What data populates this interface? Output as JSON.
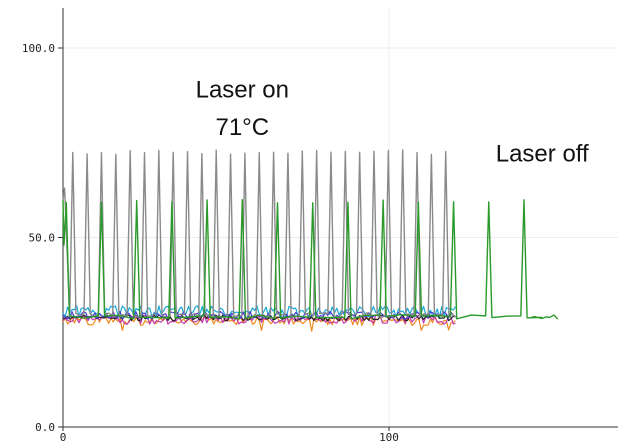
{
  "chart_data": {
    "type": "line",
    "title": "",
    "xlabel": "",
    "ylabel": "",
    "xlim": [
      0,
      170
    ],
    "ylim": [
      0,
      100
    ],
    "grid": true,
    "x_ticks": [
      0,
      100
    ],
    "x_tick_labels": [
      "0",
      "100"
    ],
    "y_ticks": [
      0,
      50,
      100
    ],
    "y_tick_labels": [
      "0.0",
      "50.0",
      "100.0"
    ],
    "annotations": [
      {
        "text": "Laser on",
        "x": 55,
        "y": 87
      },
      {
        "text": "71°C",
        "x": 55,
        "y": 77
      },
      {
        "text": "Laser off",
        "x": 147,
        "y": 70
      }
    ],
    "series": [
      {
        "color": "#8a8a8a",
        "pattern": {
          "start": 0,
          "end": 121,
          "period": 4.4,
          "first_peak": 3,
          "peak": 72.5,
          "baseline": 29.5,
          "peak_width": 0.6,
          "initial": [
            [
              0,
              60
            ],
            [
              0.5,
              63
            ]
          ]
        }
      },
      {
        "color": "#2a9a2a",
        "pattern": {
          "start": 0,
          "end": 152,
          "period": 10.8,
          "first_peak": 1,
          "peak": 59.5,
          "baseline": 29.0,
          "peak_width": 0.6,
          "initial": [
            [
              0,
              60
            ],
            [
              0.3,
              48
            ]
          ]
        }
      },
      {
        "color": "#19a8d9",
        "noise": {
          "start": 0,
          "end": 121,
          "center": 30.5,
          "amplitude": 1.5,
          "dips": []
        }
      },
      {
        "color": "#f08a1e",
        "noise": {
          "start": 0,
          "end": 121,
          "center": 28.0,
          "amplitude": 1.2,
          "dips": [
            [
              18,
              25.5
            ],
            [
              61,
              25.5
            ],
            [
              76,
              25.3
            ],
            [
              110,
              25.5
            ],
            [
              118,
              25.6
            ]
          ]
        }
      },
      {
        "color": "#c23ab0",
        "noise": {
          "start": 0,
          "end": 121,
          "center": 28.3,
          "amplitude": 1.2,
          "dips": []
        }
      },
      {
        "color": "#222222",
        "noise": {
          "start": 0,
          "end": 121,
          "center": 28.8,
          "amplitude": 0.8,
          "dips": []
        }
      },
      {
        "color": "#4b3fd6",
        "noise": {
          "start": 0,
          "end": 121,
          "center": 29.5,
          "amplitude": 1.0,
          "dips": []
        }
      }
    ]
  }
}
